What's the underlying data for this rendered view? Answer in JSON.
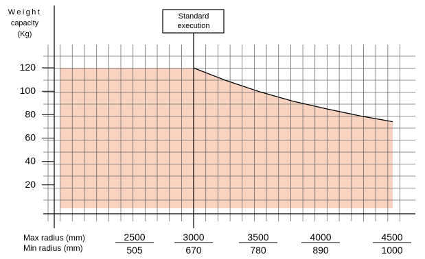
{
  "chart_data": {
    "type": "area",
    "ylabel_lines": [
      "Weight",
      "capacity",
      "(Kg)"
    ],
    "yticks": [
      20,
      40,
      60,
      80,
      100,
      120
    ],
    "ylim": [
      0,
      120
    ],
    "x_row_labels": {
      "max": "Max radius (mm)",
      "min": "Min radius (mm)"
    },
    "x_ticks_max": [
      2500,
      3000,
      3500,
      4000,
      4500
    ],
    "x_ticks_min": [
      505,
      670,
      780,
      890,
      1000
    ],
    "xlim": [
      2000,
      4500
    ],
    "annotation": {
      "lines": [
        "Standard",
        "execution"
      ],
      "x": 3000
    },
    "series": [
      {
        "x": [
          2000,
          3000,
          3250,
          3500,
          3750,
          4000,
          4250,
          4500
        ],
        "y": [
          120,
          120,
          109,
          99.5,
          91.5,
          85,
          79,
          74
        ]
      }
    ],
    "fill_color": "#f9d2c0",
    "line_color": "#000000",
    "grid": true
  }
}
